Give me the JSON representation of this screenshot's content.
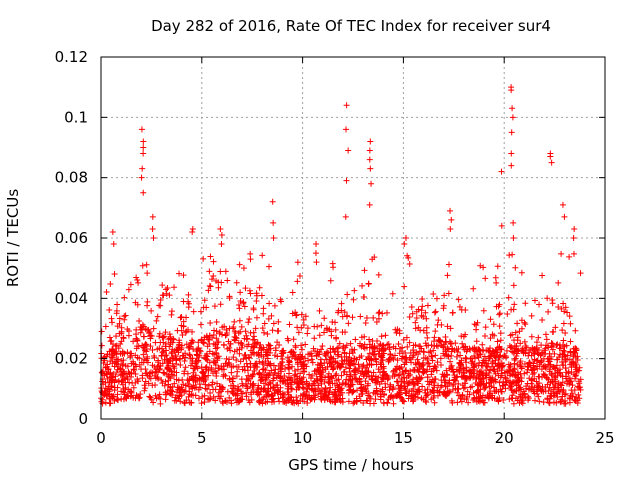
{
  "chart_data": {
    "type": "scatter",
    "title": "Day 282 of 2016, Rate Of TEC Index for receiver sur4",
    "xlabel": "GPS time / hours",
    "ylabel": "ROTI / TECUs",
    "xlim": [
      0,
      25
    ],
    "ylim": [
      0,
      0.12
    ],
    "x_ticks": [
      0,
      5,
      10,
      15,
      20,
      25
    ],
    "x_tick_labels": [
      "0",
      "5",
      "10",
      "15",
      "20",
      "25"
    ],
    "y_ticks": [
      0,
      0.02,
      0.04,
      0.06,
      0.08,
      0.1,
      0.12
    ],
    "y_tick_labels": [
      "0",
      "0.02",
      "0.04",
      "0.06",
      "0.08",
      "0.1",
      "0.12"
    ],
    "grid": true,
    "marker": "plus",
    "color": "#ff0000",
    "baseline": [
      [
        0,
        0.012
      ],
      [
        1,
        0.016
      ],
      [
        2,
        0.02
      ],
      [
        3,
        0.018
      ],
      [
        4,
        0.016
      ],
      [
        5,
        0.017
      ],
      [
        6,
        0.02
      ],
      [
        7,
        0.018
      ],
      [
        8,
        0.016
      ],
      [
        9,
        0.014
      ],
      [
        10,
        0.013
      ],
      [
        11,
        0.014
      ],
      [
        12,
        0.015
      ],
      [
        13,
        0.016
      ],
      [
        14,
        0.015
      ],
      [
        15,
        0.014
      ],
      [
        16,
        0.016
      ],
      [
        17,
        0.017
      ],
      [
        18,
        0.015
      ],
      [
        19,
        0.014
      ],
      [
        20,
        0.015
      ],
      [
        21,
        0.015
      ],
      [
        22,
        0.016
      ],
      [
        23,
        0.015
      ],
      [
        23.8,
        0.014
      ]
    ],
    "highlights": [
      {
        "x": 2.05,
        "values": [
          0.075,
          0.08,
          0.083,
          0.088,
          0.09,
          0.092,
          0.096
        ]
      },
      {
        "x": 8.55,
        "values": [
          0.06,
          0.065,
          0.072
        ]
      },
      {
        "x": 12.2,
        "values": [
          0.067,
          0.079,
          0.089,
          0.096,
          0.104
        ]
      },
      {
        "x": 13.35,
        "values": [
          0.071,
          0.078,
          0.083,
          0.086,
          0.089,
          0.092
        ]
      },
      {
        "x": 19.9,
        "values": [
          0.064,
          0.082
        ]
      },
      {
        "x": 20.4,
        "values": [
          0.06,
          0.065,
          0.084,
          0.088,
          0.095,
          0.1,
          0.103,
          0.109,
          0.11
        ]
      },
      {
        "x": 22.3,
        "values": [
          0.085,
          0.087,
          0.088
        ]
      },
      {
        "x": 22.95,
        "values": [
          0.067,
          0.071
        ]
      },
      {
        "x": 17.35,
        "values": [
          0.063,
          0.066,
          0.069
        ]
      },
      {
        "x": 4.55,
        "values": [
          0.062,
          0.063
        ]
      },
      {
        "x": 5.95,
        "values": [
          0.058,
          0.061,
          0.063
        ]
      },
      {
        "x": 2.55,
        "values": [
          0.06,
          0.063,
          0.067
        ]
      },
      {
        "x": 15.1,
        "values": [
          0.058,
          0.06
        ]
      },
      {
        "x": 10.7,
        "values": [
          0.052,
          0.055,
          0.058
        ]
      },
      {
        "x": 0.6,
        "values": [
          0.058,
          0.062
        ]
      },
      {
        "x": 23.5,
        "values": [
          0.06,
          0.063
        ]
      }
    ]
  }
}
